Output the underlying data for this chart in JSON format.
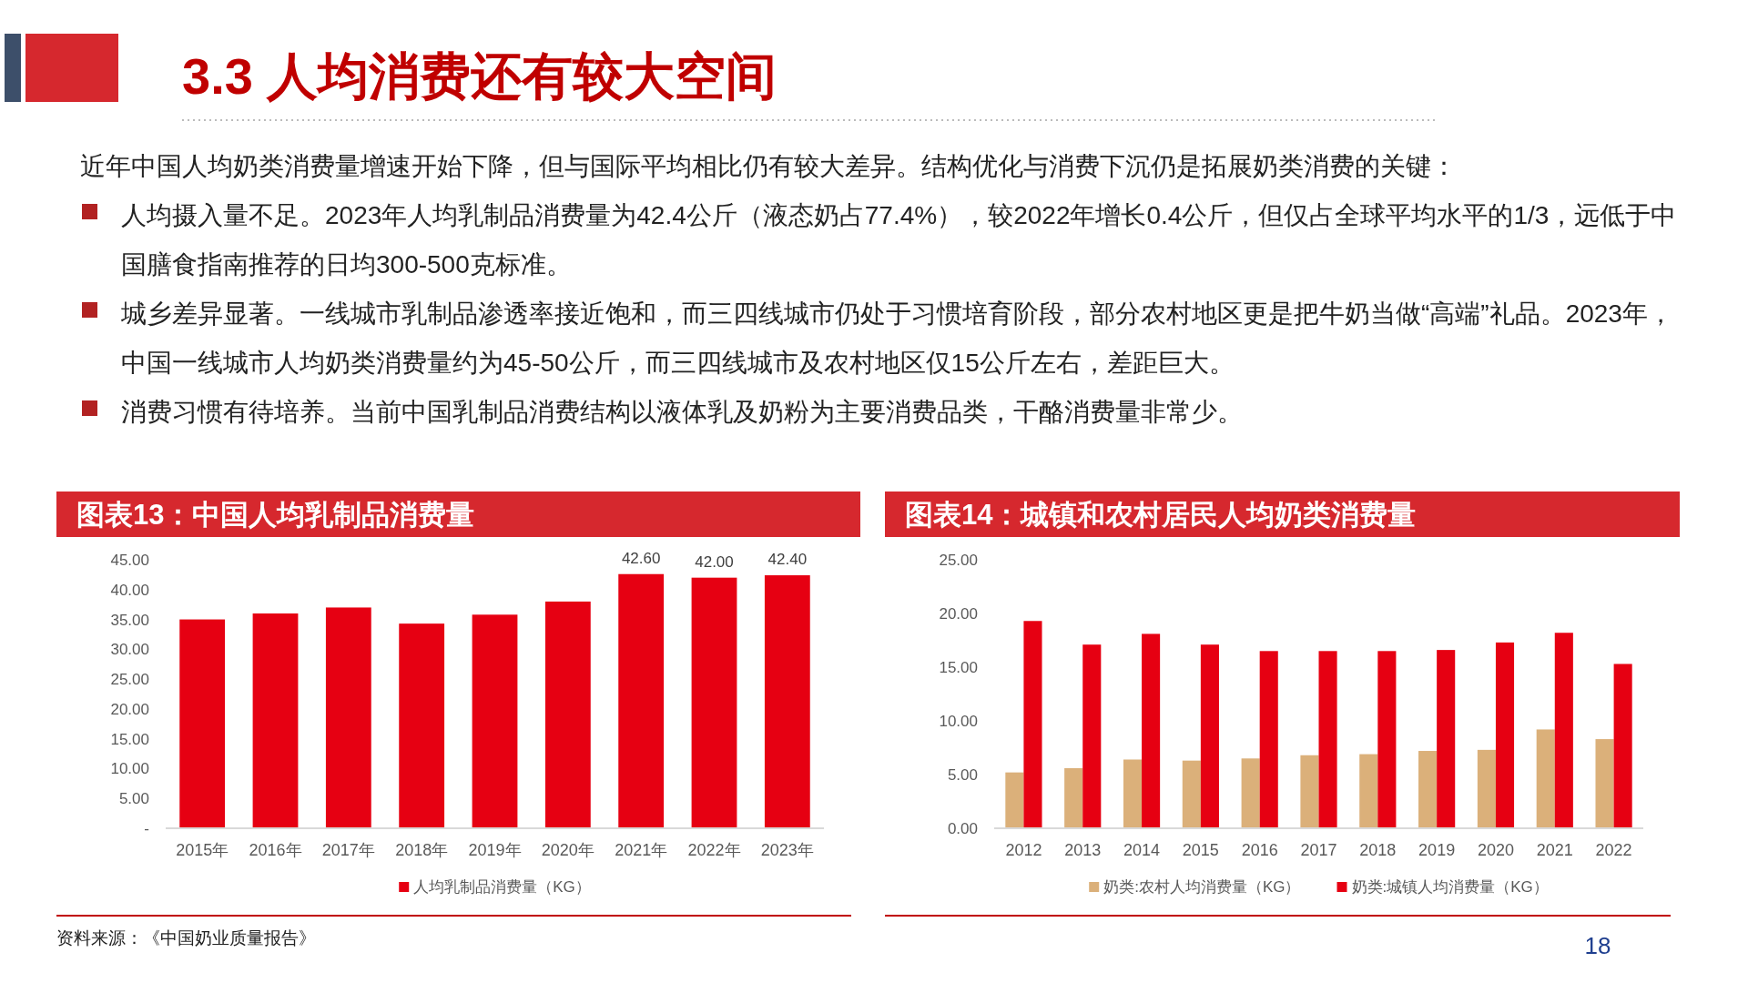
{
  "chart_data": [
    {
      "type": "other",
      "title": "3.3 人均消费还有较大空间",
      "annotations": [
        "近年中国人均奶类消费量增速开始下降，但与国际平均相比仍有较大差异。结构优化与消费下沉仍是拓展奶类消费的关键：",
        "人均摄入量不足。2023年人均乳制品消费量为42.4公斤（液态奶占77.4%），较2022年增长0.4公斤，但仅占全球平均水平的1/3，远低于中国膳食指南推荐的日均300-500克标准。",
        "城乡差异显著。一线城市乳制品渗透率接近饱和，而三四线城市仍处于习惯培育阶段，部分农村地区更是把牛奶当做“高端”礼品。2023年，中国一线城市人均奶类消费量约为45-50公斤，而三四线城市及农村地区仅15公斤左右，差距巨大。",
        "消费习惯有待培养。当前中国乳制品消费结构以液体乳及奶粉为主要消费品类，干酪消费量非常少。",
        "18"
      ]
    },
    {
      "type": "bar",
      "title": "图表13：中国人均乳制品消费量",
      "categories": [
        "2015年",
        "2016年",
        "2017年",
        "2018年",
        "2019年",
        "2020年",
        "2021年",
        "2022年",
        "2023年"
      ],
      "series": [
        {
          "name": "人均乳制品消费量（KG）",
          "color": "#e60012",
          "values": [
            35.0,
            36.0,
            37.0,
            34.3,
            35.8,
            38.0,
            42.6,
            42.0,
            42.4
          ],
          "value_labels": [
            null,
            null,
            null,
            null,
            null,
            null,
            "42.60",
            "42.00",
            "42.40"
          ]
        }
      ],
      "ylim": [
        0,
        45
      ],
      "yticks": [
        {
          "value": 0,
          "label": "-"
        },
        {
          "value": 5,
          "label": "5.00"
        },
        {
          "value": 10,
          "label": "10.00"
        },
        {
          "value": 15,
          "label": "15.00"
        },
        {
          "value": 20,
          "label": "20.00"
        },
        {
          "value": 25,
          "label": "25.00"
        },
        {
          "value": 30,
          "label": "30.00"
        },
        {
          "value": 35,
          "label": "35.00"
        },
        {
          "value": 40,
          "label": "40.00"
        },
        {
          "value": 45,
          "label": "45.00"
        }
      ],
      "grid": false,
      "legend": "bottom",
      "annotations": [
        "资料来源：《中国奶业质量报告》"
      ]
    },
    {
      "type": "bar",
      "title": "图表14：城镇和农村居民人均奶类消费量",
      "categories": [
        "2012",
        "2013",
        "2014",
        "2015",
        "2016",
        "2017",
        "2018",
        "2019",
        "2020",
        "2021",
        "2022"
      ],
      "series": [
        {
          "name": "奶类:农村人均消费量（KG）",
          "color": "#dbb07a",
          "values": [
            5.2,
            5.6,
            6.4,
            6.3,
            6.5,
            6.8,
            6.9,
            7.2,
            7.3,
            9.2,
            8.3
          ]
        },
        {
          "name": "奶类:城镇人均消费量（KG）",
          "color": "#e60012",
          "values": [
            19.3,
            17.1,
            18.1,
            17.1,
            16.5,
            16.5,
            16.5,
            16.6,
            17.3,
            18.2,
            15.3
          ]
        }
      ],
      "ylim": [
        0,
        25
      ],
      "yticks": [
        {
          "value": 0,
          "label": "0.00"
        },
        {
          "value": 5,
          "label": "5.00"
        },
        {
          "value": 10,
          "label": "10.00"
        },
        {
          "value": 15,
          "label": "15.00"
        },
        {
          "value": 20,
          "label": "20.00"
        },
        {
          "value": 25,
          "label": "25.00"
        }
      ],
      "grid": false,
      "legend": "bottom"
    }
  ]
}
